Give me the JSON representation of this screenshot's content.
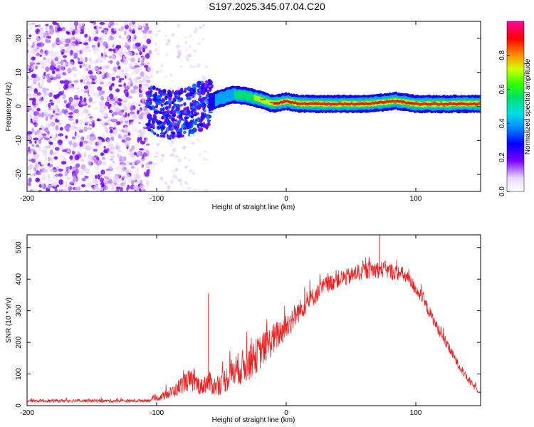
{
  "title": "S197.2025.345.07.04.C20",
  "chart_data": [
    {
      "type": "heatmap",
      "title": "",
      "xlabel": "Height of straight line (km)",
      "ylabel": "Frequency (Hz)",
      "xlim": [
        -200,
        150
      ],
      "ylim": [
        -25,
        25
      ],
      "xticks": [
        "-200",
        "-100",
        "0",
        "100"
      ],
      "yticks": [
        "-20",
        "-10",
        "0",
        "10",
        "20"
      ],
      "grid": false,
      "ridge": [
        {
          "x": -100,
          "y": -1.5
        },
        {
          "x": -90,
          "y": -2.5
        },
        {
          "x": -80,
          "y": -2
        },
        {
          "x": -70,
          "y": -0.5
        },
        {
          "x": -60,
          "y": 1
        },
        {
          "x": -50,
          "y": 2.5
        },
        {
          "x": -40,
          "y": 3.5
        },
        {
          "x": -30,
          "y": 3
        },
        {
          "x": -20,
          "y": 2
        },
        {
          "x": -10,
          "y": 0.8
        },
        {
          "x": 0,
          "y": 1.5
        },
        {
          "x": 10,
          "y": 0.8
        },
        {
          "x": 30,
          "y": 0.7
        },
        {
          "x": 60,
          "y": 0.7
        },
        {
          "x": 75,
          "y": 1.2
        },
        {
          "x": 85,
          "y": 1.6
        },
        {
          "x": 100,
          "y": 0.7
        },
        {
          "x": 120,
          "y": 0.7
        },
        {
          "x": 150,
          "y": 0.8
        }
      ],
      "noise_region": {
        "x_from": -200,
        "x_to": -105,
        "y_from": -25,
        "y_to": 25
      },
      "colorbar": {
        "label": "Normalized spectral amplitude",
        "range": [
          0,
          1
        ],
        "ticks": [
          "0.0",
          "0.2",
          "0.4",
          "0.6",
          "0.8"
        ],
        "stops": [
          {
            "v": 0.0,
            "color": "#ffffff"
          },
          {
            "v": 0.08,
            "color": "#e8d8ff"
          },
          {
            "v": 0.18,
            "color": "#7a00ff"
          },
          {
            "v": 0.28,
            "color": "#0000ff"
          },
          {
            "v": 0.38,
            "color": "#0090ff"
          },
          {
            "v": 0.46,
            "color": "#00e0e0"
          },
          {
            "v": 0.55,
            "color": "#00e070"
          },
          {
            "v": 0.63,
            "color": "#30ff00"
          },
          {
            "v": 0.72,
            "color": "#d0ff00"
          },
          {
            "v": 0.8,
            "color": "#ff9000"
          },
          {
            "v": 0.9,
            "color": "#ff0000"
          },
          {
            "v": 1.0,
            "color": "#ff00a0"
          }
        ]
      }
    },
    {
      "type": "line",
      "title": "",
      "xlabel": "Height of straight line (km)",
      "ylabel": "SNR (10 * v/v)",
      "xlim": [
        -200,
        150
      ],
      "ylim": [
        0,
        540
      ],
      "xticks": [
        "-200",
        "-100",
        "0",
        "100"
      ],
      "yticks": [
        "0",
        "100",
        "200",
        "300",
        "400",
        "500"
      ],
      "grid": false,
      "series": [
        {
          "name": "SNR",
          "color": "#ee2222",
          "x": [
            -200,
            -180,
            -160,
            -140,
            -120,
            -105,
            -95,
            -85,
            -80,
            -75,
            -70,
            -65,
            -62,
            -58,
            -55,
            -50,
            -45,
            -40,
            -35,
            -30,
            -25,
            -20,
            -15,
            -10,
            -5,
            0,
            5,
            10,
            15,
            20,
            25,
            30,
            35,
            40,
            45,
            50,
            55,
            60,
            65,
            70,
            75,
            80,
            85,
            90,
            95,
            100,
            105,
            110,
            115,
            120,
            125,
            130,
            135,
            140,
            145,
            150
          ],
          "values": [
            15,
            15,
            16,
            15,
            15,
            17,
            30,
            50,
            70,
            80,
            70,
            60,
            75,
            70,
            60,
            70,
            90,
            110,
            120,
            130,
            150,
            170,
            190,
            210,
            230,
            250,
            275,
            300,
            320,
            340,
            360,
            380,
            390,
            400,
            405,
            410,
            420,
            425,
            430,
            430,
            430,
            425,
            420,
            415,
            395,
            370,
            340,
            300,
            260,
            220,
            185,
            150,
            115,
            85,
            60,
            40
          ],
          "noise_amplitude": [
            10,
            10,
            10,
            10,
            10,
            10,
            25,
            45,
            60,
            70,
            60,
            55,
            70,
            70,
            60,
            70,
            90,
            100,
            110,
            110,
            110,
            110,
            100,
            100,
            90,
            90,
            80,
            70,
            65,
            60,
            55,
            55,
            55,
            55,
            55,
            55,
            55,
            55,
            55,
            55,
            55,
            55,
            50,
            50,
            45,
            45,
            40,
            40,
            35,
            35,
            30,
            30,
            25,
            25,
            20,
            15
          ],
          "spikes": [
            {
              "x": -60,
              "y": 355
            },
            {
              "x": 72,
              "y": 540
            }
          ]
        }
      ]
    }
  ]
}
